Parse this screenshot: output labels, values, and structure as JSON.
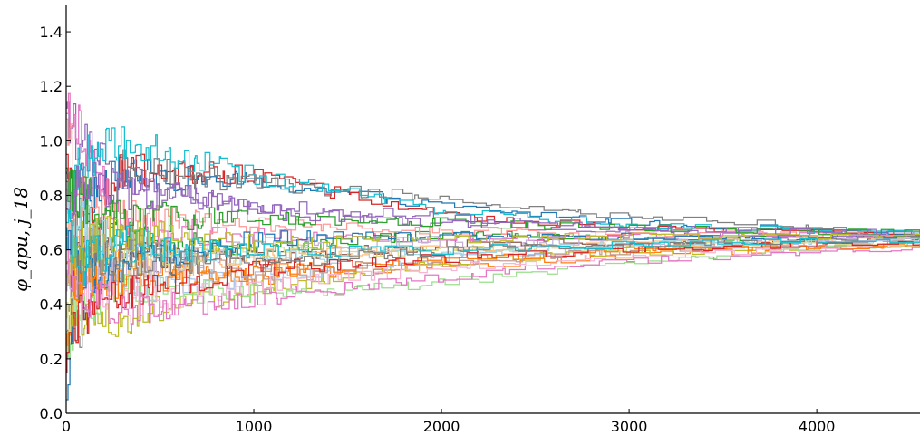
{
  "chart_data": {
    "type": "line",
    "title": "",
    "xlabel": "",
    "ylabel": "φ_apu, j_18",
    "xlim": [
      0,
      4550
    ],
    "ylim": [
      0,
      1.5
    ],
    "xticks": [
      0,
      1000,
      2000,
      3000,
      4000
    ],
    "yticks": [
      0.0,
      0.2,
      0.4,
      0.6,
      0.8,
      1.0,
      1.2,
      1.4
    ],
    "xtick_labels": [
      "0",
      "1000",
      "2000",
      "3000",
      "4000"
    ],
    "ytick_labels": [
      "0.0",
      "0.2",
      "0.4",
      "0.6",
      "0.8",
      "1.0",
      "1.2",
      "1.4"
    ],
    "grid": false,
    "legend": "none",
    "style": "step",
    "series": [
      {
        "color": "#1f77b4",
        "x": [
          0,
          60,
          300,
          1000,
          2000,
          3000,
          4550
        ],
        "y": [
          0.05,
          0.75,
          0.88,
          0.85,
          0.76,
          0.7,
          0.66
        ]
      },
      {
        "color": "#ff7f0e",
        "x": [
          0,
          60,
          300,
          1000,
          2000,
          3000,
          4550
        ],
        "y": [
          0.2,
          0.55,
          0.58,
          0.5,
          0.54,
          0.58,
          0.62
        ]
      },
      {
        "color": "#2ca02c",
        "x": [
          0,
          60,
          300,
          1000,
          2000,
          3000,
          4550
        ],
        "y": [
          0.9,
          0.7,
          0.64,
          0.6,
          0.66,
          0.64,
          0.64
        ]
      },
      {
        "color": "#d62728",
        "x": [
          0,
          60,
          300,
          1000,
          2000,
          3000,
          4550
        ],
        "y": [
          0.95,
          0.6,
          0.9,
          0.87,
          0.73,
          0.68,
          0.65
        ]
      },
      {
        "color": "#9467bd",
        "x": [
          0,
          60,
          300,
          1000,
          2000,
          3000,
          4550
        ],
        "y": [
          1.12,
          1.0,
          0.85,
          0.74,
          0.7,
          0.67,
          0.65
        ]
      },
      {
        "color": "#8c564b",
        "x": [
          0,
          60,
          300,
          1000,
          2000,
          3000,
          4550
        ],
        "y": [
          0.3,
          0.62,
          0.6,
          0.56,
          0.62,
          0.63,
          0.64
        ]
      },
      {
        "color": "#e377c2",
        "x": [
          0,
          60,
          300,
          1000,
          2000,
          3000,
          4550
        ],
        "y": [
          1.1,
          1.05,
          0.68,
          0.65,
          0.64,
          0.65,
          0.66
        ]
      },
      {
        "color": "#7f7f7f",
        "x": [
          0,
          60,
          300,
          1000,
          2000,
          3000,
          4550
        ],
        "y": [
          0.4,
          0.3,
          0.9,
          0.84,
          0.79,
          0.72,
          0.67
        ]
      },
      {
        "color": "#bcbd22",
        "x": [
          0,
          60,
          300,
          1000,
          2000,
          3000,
          4550
        ],
        "y": [
          0.3,
          0.38,
          0.35,
          0.45,
          0.56,
          0.59,
          0.62
        ]
      },
      {
        "color": "#17becf",
        "x": [
          0,
          60,
          300,
          1000,
          2000,
          3000,
          4550
        ],
        "y": [
          0.6,
          0.93,
          1.0,
          0.87,
          0.74,
          0.69,
          0.66
        ]
      },
      {
        "color": "#aec7e8",
        "x": [
          0,
          60,
          300,
          1000,
          2000,
          3000,
          4550
        ],
        "y": [
          0.82,
          0.56,
          0.46,
          0.5,
          0.57,
          0.61,
          0.63
        ]
      },
      {
        "color": "#ffbb78",
        "x": [
          0,
          60,
          300,
          1000,
          2000,
          3000,
          4550
        ],
        "y": [
          0.7,
          0.63,
          0.52,
          0.58,
          0.6,
          0.62,
          0.64
        ]
      },
      {
        "color": "#98df8a",
        "x": [
          0,
          60,
          300,
          1000,
          2000,
          3000,
          4550
        ],
        "y": [
          0.2,
          0.4,
          0.46,
          0.44,
          0.48,
          0.56,
          0.63
        ]
      },
      {
        "color": "#ff9896",
        "x": [
          0,
          60,
          300,
          1000,
          2000,
          3000,
          4550
        ],
        "y": [
          1.08,
          0.8,
          0.72,
          0.69,
          0.67,
          0.66,
          0.65
        ]
      },
      {
        "color": "#c5b0d5",
        "x": [
          0,
          60,
          300,
          1000,
          2000,
          3000,
          4550
        ],
        "y": [
          0.45,
          0.48,
          0.52,
          0.62,
          0.62,
          0.63,
          0.64
        ]
      },
      {
        "color": "#c49c94",
        "x": [
          0,
          60,
          300,
          1000,
          2000,
          3000,
          4550
        ],
        "y": [
          0.5,
          0.66,
          0.63,
          0.5,
          0.55,
          0.6,
          0.63
        ]
      },
      {
        "color": "#f7b6d2",
        "x": [
          0,
          60,
          300,
          1000,
          2000,
          3000,
          4550
        ],
        "y": [
          0.65,
          0.5,
          0.41,
          0.47,
          0.53,
          0.58,
          0.62
        ]
      },
      {
        "color": "#dbdb8d",
        "x": [
          0,
          60,
          300,
          1000,
          2000,
          3000,
          4550
        ],
        "y": [
          0.35,
          0.52,
          0.54,
          0.59,
          0.6,
          0.61,
          0.63
        ]
      },
      {
        "color": "#9edae5",
        "x": [
          0,
          60,
          300,
          1000,
          2000,
          3000,
          4550
        ],
        "y": [
          0.78,
          0.7,
          0.6,
          0.57,
          0.59,
          0.62,
          0.64
        ]
      },
      {
        "color": "#1f77b4",
        "x": [
          0,
          60,
          300,
          1000,
          2000,
          3000,
          4550
        ],
        "y": [
          0.6,
          0.5,
          0.55,
          0.64,
          0.65,
          0.65,
          0.65
        ]
      },
      {
        "color": "#ff7f0e",
        "x": [
          0,
          60,
          300,
          1000,
          2000,
          3000,
          4550
        ],
        "y": [
          0.55,
          0.5,
          0.47,
          0.52,
          0.56,
          0.6,
          0.62
        ]
      },
      {
        "color": "#2ca02c",
        "x": [
          0,
          60,
          300,
          1000,
          2000,
          3000,
          4550
        ],
        "y": [
          0.85,
          0.8,
          0.72,
          0.72,
          0.7,
          0.68,
          0.66
        ]
      },
      {
        "color": "#d62728",
        "x": [
          0,
          60,
          300,
          1000,
          2000,
          3000,
          4550
        ],
        "y": [
          0.15,
          0.35,
          0.44,
          0.53,
          0.57,
          0.6,
          0.63
        ]
      },
      {
        "color": "#9467bd",
        "x": [
          0,
          60,
          300,
          1000,
          2000,
          3000,
          4550
        ],
        "y": [
          0.75,
          0.87,
          0.81,
          0.77,
          0.72,
          0.68,
          0.66
        ]
      },
      {
        "color": "#e377c2",
        "x": [
          0,
          60,
          300,
          1000,
          2000,
          3000,
          4550
        ],
        "y": [
          0.6,
          0.45,
          0.38,
          0.42,
          0.5,
          0.56,
          0.61
        ]
      },
      {
        "color": "#7f7f7f",
        "x": [
          0,
          60,
          300,
          1000,
          2000,
          3000,
          4550
        ],
        "y": [
          0.88,
          0.6,
          0.57,
          0.55,
          0.6,
          0.62,
          0.64
        ]
      },
      {
        "color": "#bcbd22",
        "x": [
          0,
          60,
          300,
          1000,
          2000,
          3000,
          4550
        ],
        "y": [
          0.5,
          0.62,
          0.66,
          0.62,
          0.64,
          0.65,
          0.65
        ]
      },
      {
        "color": "#17becf",
        "x": [
          0,
          60,
          300,
          1000,
          2000,
          3000,
          4550
        ],
        "y": [
          0.7,
          0.54,
          0.62,
          0.59,
          0.6,
          0.62,
          0.64
        ]
      }
    ]
  }
}
